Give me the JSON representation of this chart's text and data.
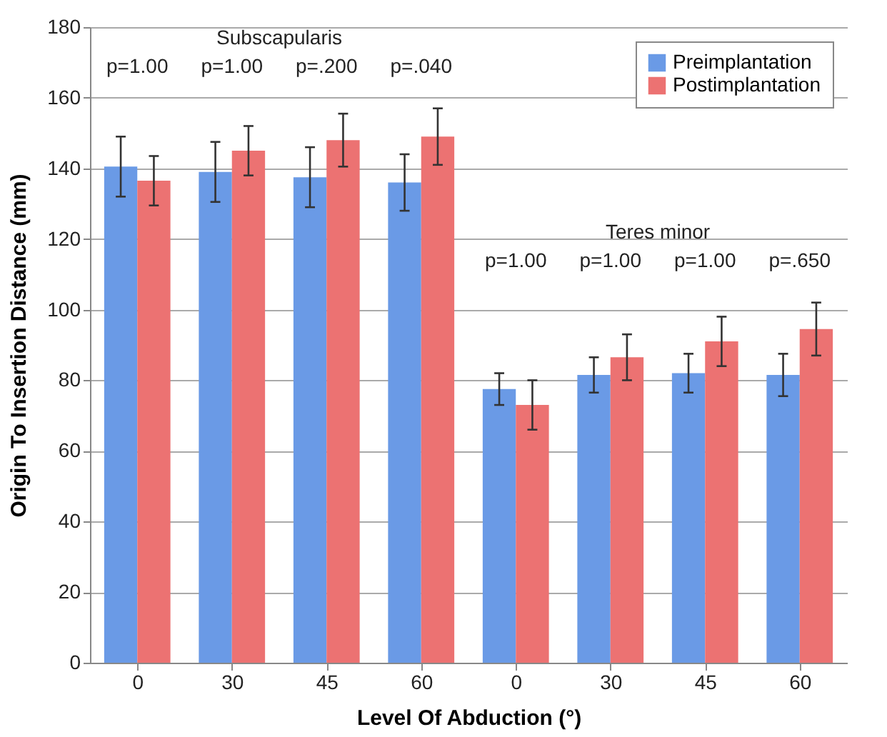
{
  "chart_data": {
    "type": "bar",
    "xlabel": "Level Of Abduction (°)",
    "ylabel": "Origin To Insertion Distance (mm)",
    "categories": [
      "0",
      "30",
      "45",
      "60",
      "0",
      "30",
      "45",
      "60"
    ],
    "series": [
      {
        "name": "Preimplantation",
        "color": "#6a9ae6",
        "values": [
          140.5,
          139,
          137.5,
          136,
          77.5,
          81.5,
          82,
          81.5
        ],
        "errors": [
          8.5,
          8.5,
          8.5,
          8,
          4.5,
          5,
          5.5,
          6
        ]
      },
      {
        "name": "Postimplantation",
        "color": "#ec7272",
        "values": [
          136.5,
          145,
          148,
          149,
          73,
          86.5,
          91,
          94.5
        ],
        "errors": [
          7,
          7,
          7.5,
          8,
          7,
          6.5,
          7,
          7.5
        ]
      }
    ],
    "ylim": [
      0,
      180
    ],
    "yticks": [
      0,
      20,
      40,
      60,
      80,
      100,
      120,
      140,
      160,
      180
    ],
    "grid": "y",
    "legend": "top right",
    "annotations": [
      "Subscapularis",
      "p=1.00",
      "p=1.00",
      "p=.200",
      "p=.040",
      "Teres minor",
      "p=1.00",
      "p=1.00",
      "p=1.00",
      "p=.650"
    ]
  }
}
